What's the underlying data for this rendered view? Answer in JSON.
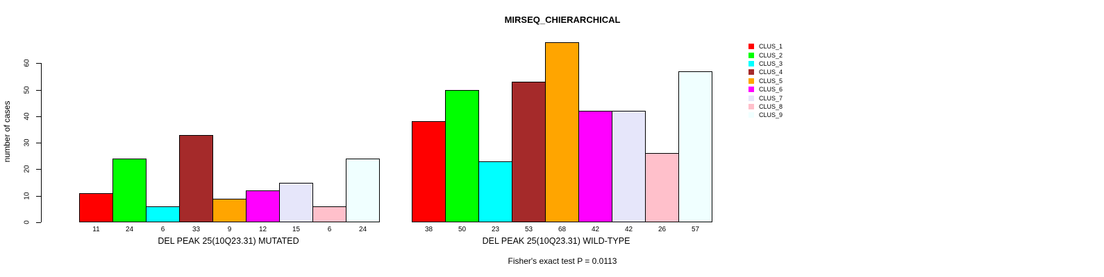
{
  "title": "MIRSEQ_CHIERARCHICAL",
  "footer": "Fisher's exact test P = 0.0113",
  "chart_data": {
    "type": "bar",
    "title": "MIRSEQ_CHIERARCHICAL",
    "ylabel": "number of cases",
    "xlabel": "",
    "ylim": [
      0,
      68
    ],
    "yticks": [
      0,
      10,
      20,
      30,
      40,
      50,
      60
    ],
    "grid": false,
    "legend_position": "right",
    "bar_borders": "#000000",
    "categories": [
      "DEL PEAK 25(10Q23.31) MUTATED",
      "DEL PEAK 25(10Q23.31) WILD-TYPE"
    ],
    "series": [
      {
        "name": "CLUS_1",
        "color": "#FF0000",
        "values": [
          11,
          38
        ]
      },
      {
        "name": "CLUS_2",
        "color": "#00FF00",
        "values": [
          24,
          50
        ]
      },
      {
        "name": "CLUS_3",
        "color": "#00FFFF",
        "values": [
          6,
          23
        ]
      },
      {
        "name": "CLUS_4",
        "color": "#A52A2A",
        "values": [
          33,
          53
        ]
      },
      {
        "name": "CLUS_5",
        "color": "#FFA500",
        "values": [
          9,
          68
        ]
      },
      {
        "name": "CLUS_6",
        "color": "#FF00FF",
        "values": [
          12,
          42
        ]
      },
      {
        "name": "CLUS_7",
        "color": "#E6E6FA",
        "values": [
          15,
          42
        ]
      },
      {
        "name": "CLUS_8",
        "color": "#FFC0CB",
        "values": [
          6,
          26
        ]
      },
      {
        "name": "CLUS_9",
        "color": "#F0FFFF",
        "values": [
          24,
          57
        ]
      }
    ],
    "annotation": "Fisher's exact test P = 0.0113"
  }
}
